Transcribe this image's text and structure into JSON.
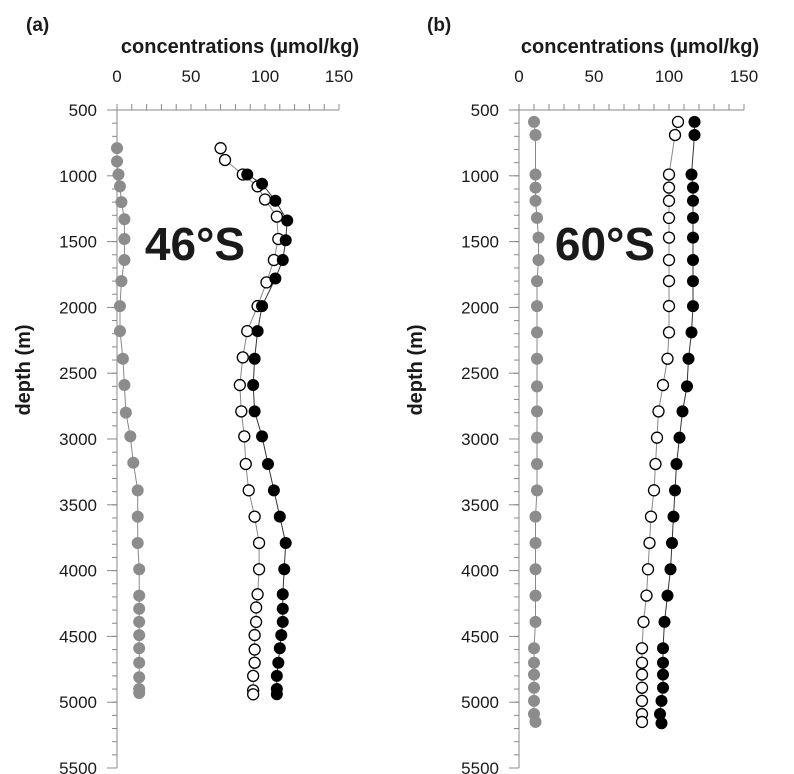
{
  "chart_data": [
    {
      "type": "scatter",
      "panel_label": "(a)",
      "station_label": "46°S",
      "xlabel": "concentrations (µmol/kg)",
      "ylabel": "depth (m)",
      "xlim": [
        0,
        150
      ],
      "ylim": [
        500,
        5500
      ],
      "y_inverted": true,
      "x_axis_position": "top",
      "x_ticks": [
        "0",
        "50",
        "100",
        "150"
      ],
      "y_ticks": [
        "500",
        "1000",
        "1500",
        "2000",
        "2500",
        "3000",
        "3500",
        "4000",
        "4500",
        "5000",
        "5500"
      ],
      "grid": false,
      "series": [
        {
          "marker": "filled-gray",
          "color": "#8c8c8c",
          "points": [
            [
              0,
              790
            ],
            [
              0,
              890
            ],
            [
              1,
              990
            ],
            [
              2,
              1080
            ],
            [
              3,
              1200
            ],
            [
              5,
              1330
            ],
            [
              5,
              1480
            ],
            [
              5,
              1640
            ],
            [
              3,
              1800
            ],
            [
              2,
              1990
            ],
            [
              2,
              2180
            ],
            [
              4,
              2390
            ],
            [
              5,
              2590
            ],
            [
              6,
              2800
            ],
            [
              9,
              2980
            ],
            [
              11,
              3180
            ],
            [
              14,
              3390
            ],
            [
              14,
              3590
            ],
            [
              14,
              3790
            ],
            [
              15,
              3990
            ],
            [
              15,
              4190
            ],
            [
              15,
              4290
            ],
            [
              15,
              4390
            ],
            [
              15,
              4490
            ],
            [
              15,
              4590
            ],
            [
              15,
              4700
            ],
            [
              15,
              4810
            ],
            [
              15,
              4900
            ],
            [
              15,
              4930
            ]
          ]
        },
        {
          "marker": "open",
          "color": "#000000",
          "points": [
            [
              70,
              790
            ],
            [
              73,
              880
            ],
            [
              85,
              990
            ],
            [
              95,
              1080
            ],
            [
              100,
              1180
            ],
            [
              108,
              1310
            ],
            [
              109,
              1480
            ],
            [
              106,
              1640
            ],
            [
              101,
              1810
            ],
            [
              95,
              1990
            ],
            [
              88,
              2180
            ],
            [
              85,
              2380
            ],
            [
              83,
              2590
            ],
            [
              84,
              2790
            ],
            [
              86,
              2980
            ],
            [
              87,
              3190
            ],
            [
              89,
              3390
            ],
            [
              93,
              3590
            ],
            [
              96,
              3790
            ],
            [
              96,
              3990
            ],
            [
              95,
              4180
            ],
            [
              94,
              4280
            ],
            [
              94,
              4390
            ],
            [
              93,
              4490
            ],
            [
              93,
              4600
            ],
            [
              93,
              4700
            ],
            [
              92,
              4800
            ],
            [
              92,
              4910
            ],
            [
              92,
              4940
            ]
          ]
        },
        {
          "marker": "filled-black",
          "color": "#000000",
          "points": [
            [
              88,
              990
            ],
            [
              98,
              1060
            ],
            [
              107,
              1190
            ],
            [
              115,
              1340
            ],
            [
              114,
              1490
            ],
            [
              112,
              1640
            ],
            [
              107,
              1780
            ],
            [
              98,
              1990
            ],
            [
              95,
              2180
            ],
            [
              93,
              2390
            ],
            [
              92,
              2590
            ],
            [
              93,
              2790
            ],
            [
              98,
              2980
            ],
            [
              102,
              3190
            ],
            [
              106,
              3390
            ],
            [
              110,
              3590
            ],
            [
              114,
              3790
            ],
            [
              113,
              3990
            ],
            [
              112,
              4180
            ],
            [
              112,
              4290
            ],
            [
              112,
              4390
            ],
            [
              111,
              4490
            ],
            [
              110,
              4590
            ],
            [
              109,
              4700
            ],
            [
              108,
              4800
            ],
            [
              108,
              4900
            ],
            [
              108,
              4940
            ]
          ]
        }
      ]
    },
    {
      "type": "scatter",
      "panel_label": "(b)",
      "station_label": "60°S",
      "xlabel": "concentrations (µmol/kg)",
      "ylabel": "depth (m)",
      "xlim": [
        0,
        150
      ],
      "ylim": [
        500,
        5500
      ],
      "y_inverted": true,
      "x_axis_position": "top",
      "x_ticks": [
        "0",
        "50",
        "100",
        "150"
      ],
      "y_ticks": [
        "500",
        "1000",
        "1500",
        "2000",
        "2500",
        "3000",
        "3500",
        "4000",
        "4500",
        "5000",
        "5500"
      ],
      "grid": false,
      "series": [
        {
          "marker": "filled-gray",
          "color": "#8c8c8c",
          "points": [
            [
              10,
              590
            ],
            [
              11,
              690
            ],
            [
              11,
              990
            ],
            [
              11,
              1090
            ],
            [
              11,
              1190
            ],
            [
              12,
              1320
            ],
            [
              13,
              1470
            ],
            [
              13,
              1640
            ],
            [
              12,
              1800
            ],
            [
              12,
              1990
            ],
            [
              12,
              2190
            ],
            [
              12,
              2390
            ],
            [
              12,
              2600
            ],
            [
              12,
              2790
            ],
            [
              12,
              2990
            ],
            [
              12,
              3190
            ],
            [
              12,
              3390
            ],
            [
              11,
              3590
            ],
            [
              11,
              3790
            ],
            [
              11,
              3990
            ],
            [
              11,
              4190
            ],
            [
              11,
              4390
            ],
            [
              10,
              4590
            ],
            [
              10,
              4700
            ],
            [
              10,
              4790
            ],
            [
              10,
              4890
            ],
            [
              10,
              4990
            ],
            [
              10,
              5090
            ],
            [
              11,
              5150
            ]
          ]
        },
        {
          "marker": "open",
          "color": "#000000",
          "points": [
            [
              106,
              590
            ],
            [
              104,
              690
            ],
            [
              100,
              990
            ],
            [
              100,
              1090
            ],
            [
              100,
              1190
            ],
            [
              100,
              1320
            ],
            [
              100,
              1470
            ],
            [
              100,
              1640
            ],
            [
              100,
              1800
            ],
            [
              100,
              1990
            ],
            [
              100,
              2190
            ],
            [
              99,
              2390
            ],
            [
              96,
              2590
            ],
            [
              93,
              2790
            ],
            [
              92,
              2990
            ],
            [
              91,
              3190
            ],
            [
              90,
              3390
            ],
            [
              88,
              3590
            ],
            [
              87,
              3790
            ],
            [
              86,
              3990
            ],
            [
              85,
              4190
            ],
            [
              83,
              4390
            ],
            [
              82,
              4590
            ],
            [
              82,
              4700
            ],
            [
              82,
              4790
            ],
            [
              82,
              4890
            ],
            [
              82,
              4990
            ],
            [
              82,
              5090
            ],
            [
              82,
              5150
            ]
          ]
        },
        {
          "marker": "filled-black",
          "color": "#000000",
          "points": [
            [
              117,
              590
            ],
            [
              117,
              690
            ],
            [
              115,
              990
            ],
            [
              116,
              1090
            ],
            [
              116,
              1190
            ],
            [
              116,
              1320
            ],
            [
              116,
              1470
            ],
            [
              116,
              1640
            ],
            [
              116,
              1800
            ],
            [
              116,
              1990
            ],
            [
              115,
              2190
            ],
            [
              113,
              2390
            ],
            [
              112,
              2600
            ],
            [
              109,
              2790
            ],
            [
              107,
              2990
            ],
            [
              105,
              3190
            ],
            [
              104,
              3390
            ],
            [
              103,
              3590
            ],
            [
              102,
              3790
            ],
            [
              101,
              3990
            ],
            [
              99,
              4190
            ],
            [
              97,
              4390
            ],
            [
              96,
              4590
            ],
            [
              96,
              4700
            ],
            [
              96,
              4790
            ],
            [
              96,
              4890
            ],
            [
              95,
              4990
            ],
            [
              94,
              5090
            ],
            [
              95,
              5160
            ]
          ]
        }
      ]
    }
  ]
}
